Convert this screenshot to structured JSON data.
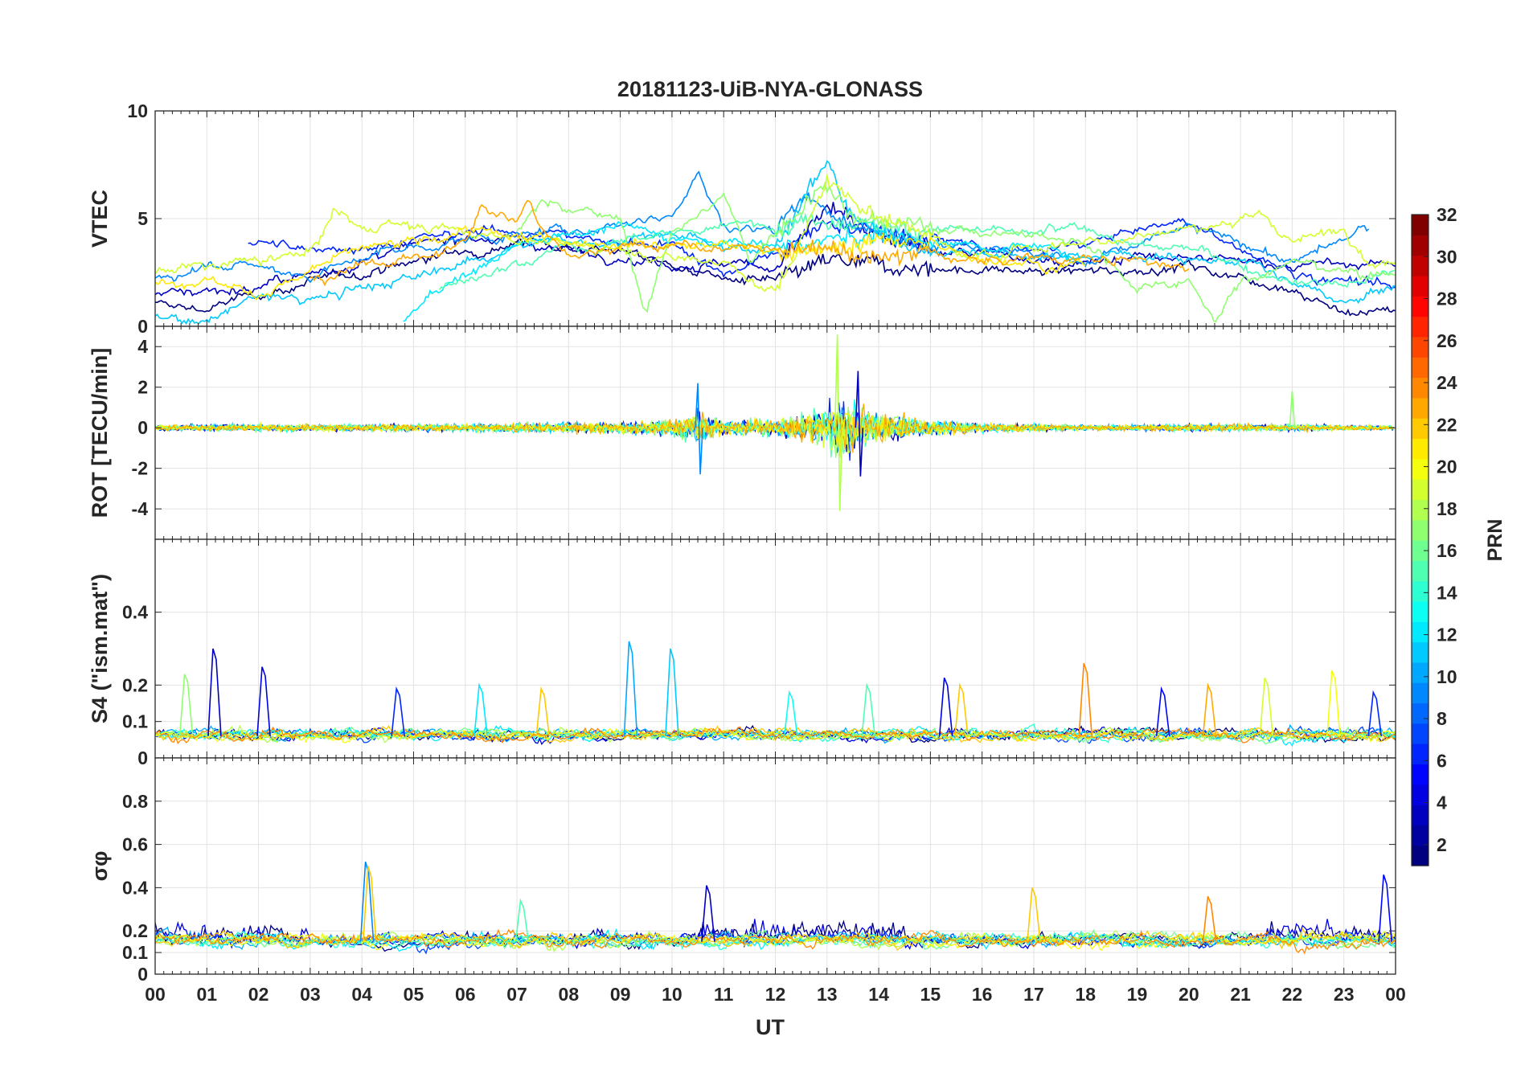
{
  "title": "20181123-UiB-NYA-GLONASS",
  "xlabel": "UT",
  "x_ticks": [
    "00",
    "01",
    "02",
    "03",
    "04",
    "05",
    "06",
    "07",
    "08",
    "09",
    "10",
    "11",
    "12",
    "13",
    "14",
    "15",
    "16",
    "17",
    "18",
    "19",
    "20",
    "21",
    "22",
    "23",
    "00"
  ],
  "colorbar": {
    "label": "PRN",
    "range": [
      1,
      32
    ],
    "ticks": [
      "2",
      "4",
      "6",
      "8",
      "10",
      "12",
      "14",
      "16",
      "18",
      "20",
      "22",
      "24",
      "26",
      "28",
      "30",
      "32"
    ],
    "colormap": "jet"
  },
  "chart_data": [
    {
      "type": "line",
      "ylabel": "VTEC",
      "xlim_hours": [
        0,
        24
      ],
      "ylim": [
        0,
        10
      ],
      "y_ticks": [
        "0",
        "5",
        "10"
      ],
      "grid": true,
      "description_series": "multiple GLONASS PRN tracks, colored by PRN",
      "series_profile": [
        {
          "prn": 1,
          "points": [
            [
              0,
              1.0
            ],
            [
              1,
              0.8
            ],
            [
              2,
              1.5
            ],
            [
              3,
              2.0
            ],
            [
              5,
              3.0
            ],
            [
              7,
              4.0
            ],
            [
              9,
              3.5
            ],
            [
              11,
              2.2
            ],
            [
              12,
              2.0
            ],
            [
              13,
              3.0
            ],
            [
              14,
              2.8
            ],
            [
              16,
              2.6
            ],
            [
              18,
              2.5
            ],
            [
              20,
              2.8
            ],
            [
              22,
              1.8
            ],
            [
              23,
              0.6
            ],
            [
              24,
              0.8
            ]
          ]
        },
        {
          "prn": 3,
          "points": [
            [
              0,
              1.6
            ],
            [
              1,
              1.7
            ],
            [
              2,
              1.8
            ],
            [
              4,
              3.0
            ],
            [
              6,
              4.3
            ],
            [
              8,
              3.6
            ],
            [
              10,
              2.9
            ],
            [
              12,
              2.8
            ],
            [
              13,
              5.5
            ],
            [
              14,
              4.0
            ],
            [
              15,
              3.6
            ],
            [
              17,
              3.0
            ],
            [
              19,
              3.2
            ],
            [
              21,
              3.0
            ],
            [
              23,
              2.8
            ],
            [
              24,
              3.0
            ]
          ]
        },
        {
          "prn": 6,
          "points": [
            [
              1.8,
              3.8
            ],
            [
              3,
              3.6
            ],
            [
              4.5,
              3.8
            ],
            [
              6,
              4.3
            ],
            [
              7,
              4.5
            ],
            [
              8,
              4.2
            ],
            [
              9,
              3.8
            ],
            [
              10,
              3.9
            ],
            [
              11,
              2.5
            ],
            [
              12,
              3.2
            ],
            [
              13,
              4.8
            ],
            [
              15,
              4.0
            ],
            [
              17,
              3.4
            ],
            [
              19,
              4.4
            ],
            [
              20,
              4.9
            ],
            [
              21,
              3.5
            ],
            [
              22,
              2.5
            ],
            [
              23,
              2.2
            ],
            [
              24,
              1.6
            ]
          ]
        },
        {
          "prn": 9,
          "points": [
            [
              0,
              2.3
            ],
            [
              0.5,
              2.5
            ],
            [
              1,
              3.0
            ],
            [
              3,
              2.4
            ],
            [
              4.5,
              3.5
            ],
            [
              6,
              4.0
            ],
            [
              8,
              4.4
            ],
            [
              10,
              5.2
            ],
            [
              10.5,
              7.1
            ],
            [
              11,
              4.6
            ],
            [
              12,
              4.5
            ],
            [
              12.5,
              6.2
            ],
            [
              13,
              5.3
            ],
            [
              14,
              4.2
            ],
            [
              16,
              3.8
            ],
            [
              18,
              3.0
            ],
            [
              20,
              4.6
            ],
            [
              21,
              3.9
            ],
            [
              22,
              3.0
            ],
            [
              23,
              4.0
            ],
            [
              23.5,
              4.6
            ]
          ]
        },
        {
          "prn": 11,
          "points": [
            [
              0,
              0.5
            ],
            [
              0.5,
              0.2
            ],
            [
              1,
              0.3
            ],
            [
              2,
              1.4
            ],
            [
              3,
              1.2
            ],
            [
              4,
              1.8
            ],
            [
              5,
              2.2
            ],
            [
              6,
              3.0
            ],
            [
              7,
              3.8
            ],
            [
              9,
              4.0
            ],
            [
              10,
              4.3
            ],
            [
              11,
              3.5
            ],
            [
              12,
              3.8
            ],
            [
              13,
              7.6
            ],
            [
              13.5,
              5.0
            ],
            [
              15,
              3.5
            ],
            [
              17,
              3.2
            ],
            [
              19,
              3.4
            ],
            [
              21,
              3.0
            ],
            [
              23,
              1.0
            ],
            [
              24,
              1.8
            ]
          ]
        },
        {
          "prn": 12,
          "points": [
            [
              4.8,
              0.3
            ],
            [
              5.5,
              1.8
            ],
            [
              6.5,
              3.0
            ],
            [
              7,
              3.8
            ],
            [
              8,
              4.4
            ],
            [
              9,
              4.6
            ],
            [
              10,
              4.2
            ],
            [
              12,
              3.8
            ],
            [
              14,
              4.2
            ],
            [
              16,
              3.8
            ],
            [
              18,
              3.4
            ]
          ]
        },
        {
          "prn": 15,
          "points": [
            [
              5.5,
              1.8
            ],
            [
              6.5,
              2.5
            ],
            [
              7,
              3.0
            ],
            [
              8,
              4.0
            ],
            [
              8.5,
              3.4
            ],
            [
              9,
              4.0
            ],
            [
              11,
              4.6
            ],
            [
              13,
              5.0
            ],
            [
              15,
              4.5
            ],
            [
              17,
              4.3
            ],
            [
              18,
              4.6
            ],
            [
              19,
              3.8
            ],
            [
              20,
              3.6
            ],
            [
              21,
              2.8
            ],
            [
              22,
              2.2
            ],
            [
              23,
              2.0
            ],
            [
              24,
              2.6
            ]
          ]
        },
        {
          "prn": 17,
          "points": [
            [
              7,
              4.5
            ],
            [
              7.5,
              5.8
            ],
            [
              8,
              5.5
            ],
            [
              9,
              5.0
            ],
            [
              9.5,
              0.5
            ],
            [
              10,
              4.5
            ],
            [
              11,
              6.0
            ],
            [
              11.5,
              3.0
            ],
            [
              12,
              4.5
            ],
            [
              12.5,
              5.5
            ],
            [
              13,
              6.8
            ],
            [
              13.5,
              5.0
            ],
            [
              15,
              4.6
            ],
            [
              17,
              4.2
            ],
            [
              18,
              4.0
            ],
            [
              19,
              1.8
            ],
            [
              20,
              2.2
            ],
            [
              20.5,
              0.5
            ],
            [
              21,
              2.0
            ],
            [
              22,
              3.0
            ],
            [
              23,
              2.6
            ],
            [
              24,
              2.4
            ]
          ]
        },
        {
          "prn": 19,
          "points": [
            [
              0,
              2.6
            ],
            [
              1,
              2.8
            ],
            [
              2,
              3.0
            ],
            [
              3,
              3.4
            ],
            [
              3.5,
              5.5
            ],
            [
              4,
              4.5
            ],
            [
              4.5,
              4.8
            ],
            [
              11,
              3.0
            ],
            [
              12,
              1.5
            ],
            [
              12.5,
              4.0
            ],
            [
              13,
              6.8
            ],
            [
              14,
              5.0
            ],
            [
              15,
              4.5
            ],
            [
              15.5,
              3.2
            ],
            [
              21.5,
              5.0
            ],
            [
              22,
              4.0
            ],
            [
              23,
              4.5
            ],
            [
              23.5,
              3.0
            ],
            [
              24,
              2.8
            ]
          ]
        },
        {
          "prn": 21,
          "points": [
            [
              0,
              2.2
            ],
            [
              1,
              2.2
            ],
            [
              2,
              1.5
            ],
            [
              3,
              2.5
            ],
            [
              4,
              3.6
            ],
            [
              5,
              3.8
            ],
            [
              6,
              4.5
            ],
            [
              6.5,
              4.2
            ],
            [
              13,
              3.5
            ],
            [
              14,
              4.0
            ],
            [
              15,
              3.8
            ],
            [
              16,
              3.2
            ],
            [
              17,
              3.0
            ],
            [
              18,
              2.8
            ]
          ]
        },
        {
          "prn": 23,
          "points": [
            [
              3,
              2.2
            ],
            [
              4,
              2.8
            ],
            [
              5,
              3.2
            ],
            [
              6,
              3.8
            ],
            [
              6.3,
              5.5
            ],
            [
              7,
              4.8
            ],
            [
              7.2,
              6.0
            ],
            [
              7.5,
              4.5
            ],
            [
              8,
              3.4
            ],
            [
              9,
              3.8
            ],
            [
              13,
              3.5
            ],
            [
              14,
              3.2
            ],
            [
              15,
              3.4
            ],
            [
              16,
              3.0
            ],
            [
              17,
              3.2
            ],
            [
              19,
              3.0
            ],
            [
              20,
              2.8
            ]
          ]
        }
      ]
    },
    {
      "type": "line",
      "ylabel": "ROT [TECU/min]",
      "xlim_hours": [
        0,
        24
      ],
      "ylim": [
        -5.5,
        5
      ],
      "y_ticks": [
        "-4",
        "-2",
        "0",
        "2",
        "4"
      ],
      "grid": true,
      "envelope": [
        [
          0,
          0.4
        ],
        [
          2,
          0.5
        ],
        [
          4,
          0.5
        ],
        [
          6,
          0.6
        ],
        [
          8,
          0.7
        ],
        [
          9,
          0.8
        ],
        [
          10,
          1.2
        ],
        [
          10.5,
          2.2
        ],
        [
          11,
          1.0
        ],
        [
          12,
          1.3
        ],
        [
          12.5,
          2.0
        ],
        [
          13,
          3.0
        ],
        [
          13.3,
          4.6
        ],
        [
          13.6,
          2.8
        ],
        [
          14,
          2.0
        ],
        [
          15,
          1.2
        ],
        [
          16,
          0.7
        ],
        [
          18,
          0.4
        ],
        [
          20,
          0.5
        ],
        [
          22,
          0.5
        ],
        [
          24,
          0.3
        ]
      ],
      "spikes": [
        {
          "x": 10.5,
          "max": 2.2,
          "min": -2.3,
          "prn": 9
        },
        {
          "x": 13.2,
          "max": 4.6,
          "min": -4.1,
          "prn": 18
        },
        {
          "x": 13.6,
          "max": 2.8,
          "min": -2.4,
          "prn": 3
        },
        {
          "x": 22.0,
          "max": 1.8,
          "min": 0,
          "prn": 17
        }
      ]
    },
    {
      "type": "line",
      "ylabel": "S4 (\"ism.mat\")",
      "xlim_hours": [
        0,
        24
      ],
      "ylim": [
        0,
        0.6
      ],
      "y_ticks": [
        "0",
        "0.1",
        "0.2",
        "0.4"
      ],
      "grid": true,
      "baseline": 0.06,
      "peaks": [
        {
          "x": 0.6,
          "y": 0.23,
          "prn": 17
        },
        {
          "x": 1.15,
          "y": 0.3,
          "prn": 3
        },
        {
          "x": 2.1,
          "y": 0.25,
          "prn": 4
        },
        {
          "x": 4.7,
          "y": 0.19,
          "prn": 6
        },
        {
          "x": 6.3,
          "y": 0.2,
          "prn": 12
        },
        {
          "x": 7.5,
          "y": 0.19,
          "prn": 22
        },
        {
          "x": 9.2,
          "y": 0.32,
          "prn": 10
        },
        {
          "x": 10.0,
          "y": 0.3,
          "prn": 11
        },
        {
          "x": 12.3,
          "y": 0.18,
          "prn": 13
        },
        {
          "x": 13.8,
          "y": 0.2,
          "prn": 15
        },
        {
          "x": 15.3,
          "y": 0.22,
          "prn": 4
        },
        {
          "x": 15.6,
          "y": 0.2,
          "prn": 22
        },
        {
          "x": 18.0,
          "y": 0.26,
          "prn": 24
        },
        {
          "x": 19.5,
          "y": 0.19,
          "prn": 5
        },
        {
          "x": 20.4,
          "y": 0.2,
          "prn": 23
        },
        {
          "x": 21.5,
          "y": 0.22,
          "prn": 19
        },
        {
          "x": 22.8,
          "y": 0.24,
          "prn": 20
        },
        {
          "x": 23.6,
          "y": 0.18,
          "prn": 6
        }
      ]
    },
    {
      "type": "line",
      "ylabel": "σφ",
      "xlim_hours": [
        0,
        24
      ],
      "ylim": [
        0,
        1
      ],
      "y_ticks": [
        "0",
        "0.1",
        "0.2",
        "0.4",
        "0.6",
        "0.8"
      ],
      "grid": true,
      "baseline": 0.15,
      "peaks": [
        {
          "x": 4.1,
          "y": 0.52,
          "prn": 9
        },
        {
          "x": 4.15,
          "y": 0.5,
          "prn": 22
        },
        {
          "x": 7.1,
          "y": 0.34,
          "prn": 15
        },
        {
          "x": 10.7,
          "y": 0.41,
          "prn": 3
        },
        {
          "x": 17.0,
          "y": 0.4,
          "prn": 22
        },
        {
          "x": 20.4,
          "y": 0.36,
          "prn": 24
        },
        {
          "x": 23.8,
          "y": 0.46,
          "prn": 5
        }
      ]
    }
  ]
}
